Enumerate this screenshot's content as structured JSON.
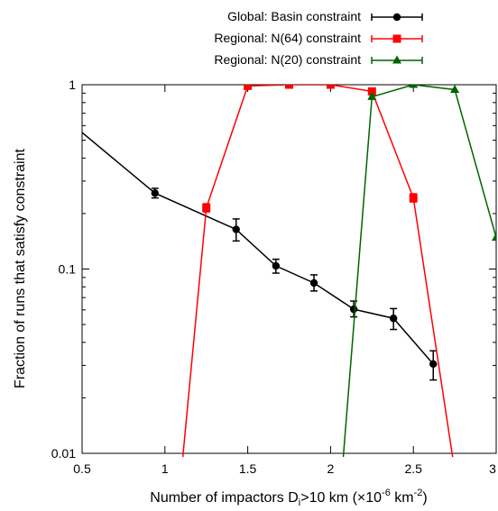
{
  "chart_data": {
    "type": "line",
    "title": "",
    "xlabel": "Number of impactors D",
    "xlabel_sub": "i",
    "xlabel_mid": ">10 km (×10",
    "xlabel_sup1": "-6",
    "xlabel_unit": " km",
    "xlabel_sup2": "-2",
    "xlabel_end": ")",
    "ylabel": "Fraction of runs that satisfy constraint",
    "xlim": [
      0.5,
      3.0
    ],
    "ylim": [
      0.01,
      1
    ],
    "yscale": "log",
    "grid": false,
    "legend_position": "top-right, above plot",
    "x_ticks": [
      0.5,
      1,
      1.5,
      2,
      2.5,
      3
    ],
    "x_tick_labels": [
      "0.5",
      "1",
      "1.5",
      "2",
      "2.5",
      "3"
    ],
    "y_ticks": [
      0.01,
      0.1,
      1
    ],
    "y_tick_labels": [
      "0.01",
      "0.1",
      "1"
    ],
    "series": [
      {
        "name": "Global: Basin constraint",
        "color": "#000000",
        "marker": "circle",
        "points": [
          {
            "x": 0.5,
            "y": 0.55
          },
          {
            "x": 0.94,
            "y": 0.258,
            "lo": 0.243,
            "hi": 0.274
          },
          {
            "x": 1.43,
            "y": 0.164,
            "lo": 0.142,
            "hi": 0.187
          },
          {
            "x": 1.67,
            "y": 0.104,
            "lo": 0.095,
            "hi": 0.113
          },
          {
            "x": 1.9,
            "y": 0.084,
            "lo": 0.076,
            "hi": 0.093
          },
          {
            "x": 2.14,
            "y": 0.0605,
            "lo": 0.055,
            "hi": 0.067
          },
          {
            "x": 2.38,
            "y": 0.054,
            "lo": 0.047,
            "hi": 0.061
          },
          {
            "x": 2.62,
            "y": 0.0305,
            "lo": 0.025,
            "hi": 0.036
          }
        ]
      },
      {
        "name": "Regional: N(64) constraint",
        "color": "#ff0000",
        "marker": "square",
        "points": [
          {
            "x": 1.1,
            "y": 0.008
          },
          {
            "x": 1.25,
            "y": 0.215,
            "lo": 0.204,
            "hi": 0.226
          },
          {
            "x": 1.5,
            "y": 0.985
          },
          {
            "x": 1.75,
            "y": 1.0
          },
          {
            "x": 2.0,
            "y": 1.0
          },
          {
            "x": 2.25,
            "y": 0.92
          },
          {
            "x": 2.5,
            "y": 0.243,
            "lo": 0.231,
            "hi": 0.256
          },
          {
            "x": 2.75,
            "y": 0.008
          }
        ]
      },
      {
        "name": "Regional: N(20) constraint",
        "color": "#006400",
        "marker": "triangle",
        "points": [
          {
            "x": 2.07,
            "y": 0.008
          },
          {
            "x": 2.25,
            "y": 0.86
          },
          {
            "x": 2.5,
            "y": 1.0
          },
          {
            "x": 2.75,
            "y": 0.94
          },
          {
            "x": 3.0,
            "y": 0.148
          }
        ]
      }
    ]
  }
}
